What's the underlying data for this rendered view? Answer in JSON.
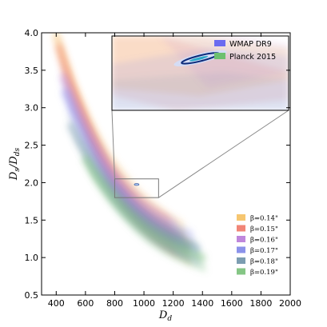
{
  "chart_data": {
    "type": "area",
    "xlabel": "D_d",
    "ylabel": "D_s/D_ds",
    "xlim": [
      300,
      2000
    ],
    "ylim": [
      0.5,
      4.0
    ],
    "x_ticks": [
      "400",
      "600",
      "800",
      "1000",
      "1200",
      "1400",
      "1600",
      "1800",
      "2000"
    ],
    "x_tick_values": [
      400,
      600,
      800,
      1000,
      1200,
      1400,
      1600,
      1800,
      2000
    ],
    "y_ticks": [
      "0.5",
      "1.0",
      "1.5",
      "2.0",
      "2.5",
      "3.0",
      "3.5",
      "4.0"
    ],
    "y_tick_values": [
      0.5,
      1.0,
      1.5,
      2.0,
      2.5,
      3.0,
      3.5,
      4.0
    ],
    "legend_position": "lower-right",
    "series": [
      {
        "name": "β=0.14\"",
        "color": "#f5c060",
        "x": [
          400,
          500,
          600,
          700,
          800,
          900,
          1000,
          1100,
          1200,
          1300
        ],
        "y": [
          3.95,
          3.35,
          2.85,
          2.45,
          2.1,
          1.85,
          1.62,
          1.45,
          1.3,
          1.18
        ],
        "half_width": 0.3
      },
      {
        "name": "β=0.15\"",
        "color": "#f07868",
        "x": [
          420,
          500,
          600,
          700,
          800,
          900,
          1000,
          1100,
          1200
        ],
        "y": [
          3.8,
          3.3,
          2.8,
          2.35,
          2.0,
          1.75,
          1.55,
          1.4,
          1.28
        ],
        "half_width": 0.28
      },
      {
        "name": "β=0.16\"",
        "color": "#b87ad8",
        "x": [
          450,
          550,
          650,
          750,
          850,
          950,
          1050,
          1150,
          1250
        ],
        "y": [
          3.4,
          2.95,
          2.55,
          2.2,
          1.9,
          1.68,
          1.5,
          1.36,
          1.25
        ],
        "half_width": 0.26
      },
      {
        "name": "β=0.17\"",
        "color": "#7e86e8",
        "x": [
          460,
          560,
          660,
          760,
          860,
          960,
          1060,
          1160,
          1260,
          1360
        ],
        "y": [
          3.2,
          2.75,
          2.35,
          2.02,
          1.78,
          1.58,
          1.42,
          1.3,
          1.2,
          1.12
        ],
        "half_width": 0.24
      },
      {
        "name": "β=0.18\"",
        "color": "#6e92a8",
        "x": [
          500,
          600,
          700,
          800,
          900,
          1000,
          1100,
          1200,
          1300
        ],
        "y": [
          2.75,
          2.4,
          2.08,
          1.82,
          1.62,
          1.45,
          1.32,
          1.22,
          1.14
        ],
        "half_width": 0.22
      },
      {
        "name": "β=0.19\"",
        "color": "#78c078",
        "x": [
          600,
          700,
          800,
          900,
          1000,
          1100,
          1200,
          1300,
          1400
        ],
        "y": [
          2.3,
          2.0,
          1.76,
          1.55,
          1.38,
          1.25,
          1.15,
          1.07,
          1.0
        ],
        "half_width": 0.2
      }
    ],
    "zoom_box": {
      "x": [
        800,
        1100
      ],
      "y": [
        1.8,
        2.05
      ]
    },
    "inset": {
      "xlim": [
        800,
        1100
      ],
      "ylim": [
        1.8,
        2.05
      ],
      "legend_position": "top-right",
      "series": [
        {
          "name": "WMAP DR9",
          "color": "#6b6bf0"
        },
        {
          "name": "Planck 2015",
          "color": "#6cc070"
        }
      ],
      "constraint": {
        "x": 950,
        "y": 1.975,
        "color": "#0a2a7a"
      }
    }
  }
}
